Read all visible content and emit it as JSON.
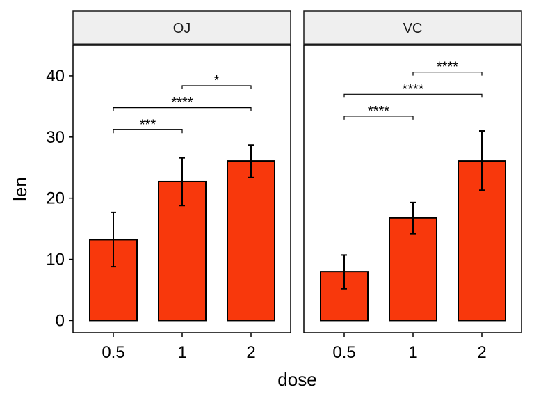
{
  "chart_data": {
    "type": "bar",
    "xlabel": "dose",
    "ylabel": "len",
    "ylim": [
      -2,
      45
    ],
    "yticks": [
      0,
      10,
      20,
      30,
      40
    ],
    "categories": [
      "0.5",
      "1",
      "2"
    ],
    "bar_color": "#F8380C",
    "strip_color": "#EFEFEF",
    "grid": false,
    "facets": [
      {
        "label": "OJ",
        "values": [
          13.2,
          22.7,
          26.1
        ],
        "error_low": [
          8.8,
          18.8,
          23.4
        ],
        "error_high": [
          17.7,
          26.6,
          28.7
        ],
        "comparisons": [
          {
            "from": "0.5",
            "to": "1",
            "y": 31.2,
            "label": "***"
          },
          {
            "from": "0.5",
            "to": "2",
            "y": 34.8,
            "label": "****"
          },
          {
            "from": "1",
            "to": "2",
            "y": 38.4,
            "label": "*"
          }
        ]
      },
      {
        "label": "VC",
        "values": [
          8.0,
          16.8,
          26.1
        ],
        "error_low": [
          5.2,
          14.2,
          21.3
        ],
        "error_high": [
          10.7,
          19.3,
          31.0
        ],
        "comparisons": [
          {
            "from": "0.5",
            "to": "1",
            "y": 33.4,
            "label": "****"
          },
          {
            "from": "0.5",
            "to": "2",
            "y": 37.0,
            "label": "****"
          },
          {
            "from": "1",
            "to": "2",
            "y": 40.6,
            "label": "****"
          }
        ]
      }
    ]
  }
}
